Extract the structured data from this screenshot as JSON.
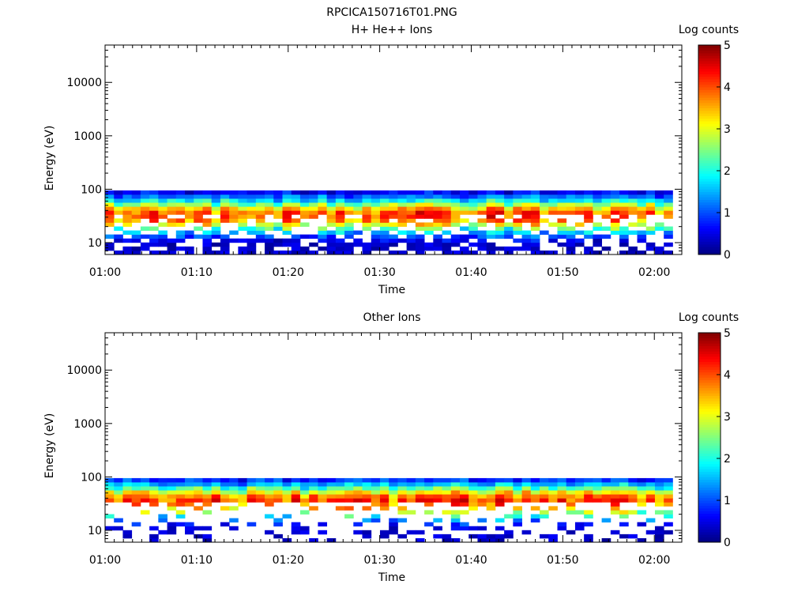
{
  "figure_title": "RPCICA150716T01.PNG",
  "colorbar": {
    "label": "Log counts",
    "ticks": [
      "0",
      "1",
      "2",
      "3",
      "4",
      "5"
    ],
    "colormap": "jet",
    "range": [
      0,
      5
    ]
  },
  "chart_data": [
    {
      "type": "heatmap",
      "title": "H+ He++ Ions",
      "xlabel": "Time",
      "ylabel": "Energy (eV)",
      "y_scale": "log",
      "ylim": [
        6,
        50000
      ],
      "xlim": [
        "01:00",
        "02:03"
      ],
      "x_ticks": [
        "01:00",
        "01:10",
        "01:20",
        "01:30",
        "01:40",
        "01:50",
        "02:00"
      ],
      "y_ticks": [
        "10",
        "100",
        "1000",
        "10000"
      ],
      "time_start": "01:00",
      "time_end": "02:02",
      "energy_range_eV": [
        6,
        95
      ],
      "peak_energy_eV": 32,
      "peak_log_counts": 4,
      "grid": false,
      "colorbar": "right"
    },
    {
      "type": "heatmap",
      "title": "Other Ions",
      "xlabel": "Time",
      "ylabel": "Energy (eV)",
      "y_scale": "log",
      "ylim": [
        6,
        50000
      ],
      "xlim": [
        "01:00",
        "02:03"
      ],
      "x_ticks": [
        "01:00",
        "01:10",
        "01:20",
        "01:30",
        "01:40",
        "01:50",
        "02:00"
      ],
      "y_ticks": [
        "10",
        "100",
        "1000",
        "10000"
      ],
      "time_start": "01:00",
      "time_end": "02:02",
      "energy_range_eV": [
        6,
        95
      ],
      "peak_energy_eV": 35,
      "peak_log_counts": 4,
      "grid": false,
      "colorbar": "right"
    }
  ]
}
